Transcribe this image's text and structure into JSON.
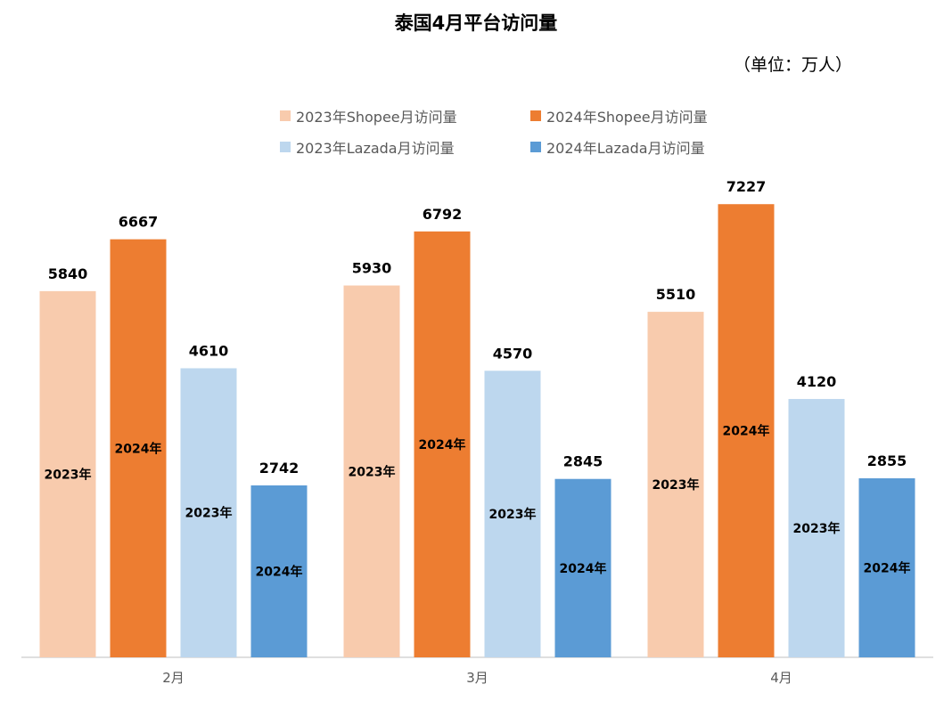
{
  "chart_data": {
    "type": "bar",
    "title": "泰国4月平台访问量",
    "unit": "（单位：万人）",
    "categories": [
      "2月",
      "3月",
      "4月"
    ],
    "series": [
      {
        "name": "2023年Shopee月访问量",
        "values": [
          5840,
          5930,
          5510
        ],
        "color": "#F8CBAD",
        "inner_label": "2023年"
      },
      {
        "name": "2024年Shopee月访问量",
        "values": [
          6667,
          6792,
          7227
        ],
        "color": "#ED7D31",
        "inner_label": "2024年"
      },
      {
        "name": "2023年Lazada月访问量",
        "values": [
          4610,
          4570,
          4120
        ],
        "color": "#BDD7EE",
        "inner_label": "2023年"
      },
      {
        "name": "2024年Lazada月访问量",
        "values": [
          2742,
          2845,
          2855
        ],
        "color": "#5B9BD5",
        "inner_label": "2024年"
      }
    ],
    "ylim": [
      0,
      10500
    ],
    "grid": false,
    "legend_position": "top"
  }
}
